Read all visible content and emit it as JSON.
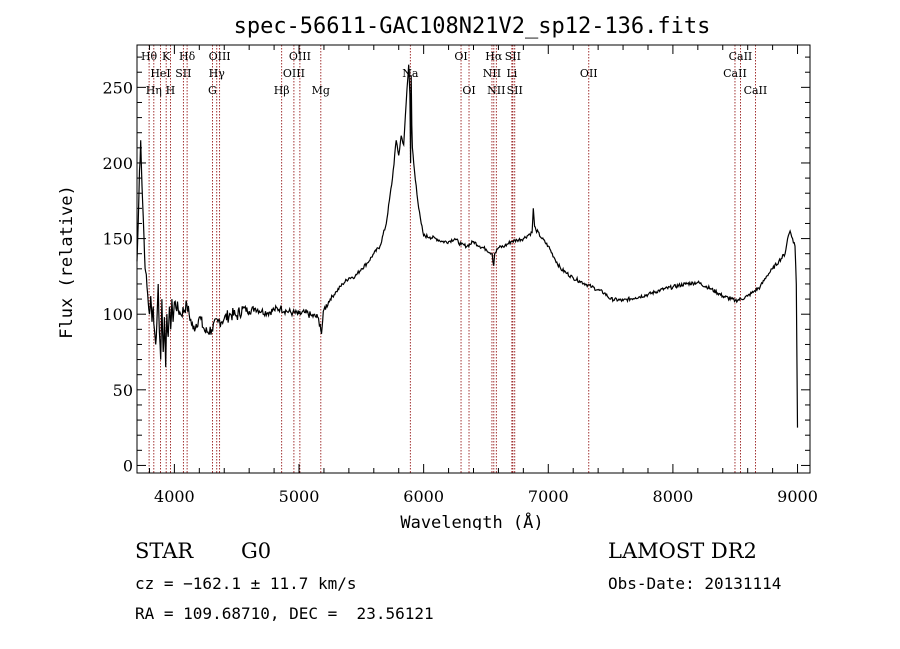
{
  "chart_data": {
    "type": "line",
    "title": "spec-56611-GAC108N21V2_sp12-136.fits",
    "xlabel": "Wavelength (Å)",
    "ylabel": "Flux (relative)",
    "xlim": [
      3700,
      9100
    ],
    "ylim": [
      -5,
      278
    ],
    "xticks": [
      4000,
      5000,
      6000,
      7000,
      8000,
      9000
    ],
    "yticks": [
      0,
      50,
      100,
      150,
      200,
      250
    ],
    "grid": false,
    "series": [
      {
        "x": [
          3700,
          3710,
          3720,
          3730,
          3740,
          3750,
          3760,
          3770,
          3780,
          3790,
          3800,
          3810,
          3820,
          3830,
          3840,
          3850,
          3860,
          3870,
          3880,
          3890,
          3900,
          3910,
          3920,
          3930,
          3940,
          3950,
          3960,
          3970,
          3980,
          3990,
          4000,
          4050,
          4100,
          4150,
          4200,
          4250,
          4300,
          4350,
          4400,
          4450,
          4500,
          4550,
          4600,
          4650,
          4700,
          4750,
          4800,
          4850,
          4900,
          4950,
          5000,
          5050,
          5100,
          5150,
          5170,
          5180,
          5190,
          5200,
          5250,
          5300,
          5350,
          5400,
          5450,
          5500,
          5550,
          5600,
          5650,
          5700,
          5750,
          5780,
          5800,
          5820,
          5840,
          5860,
          5880,
          5890,
          5895,
          5900,
          5905,
          5910,
          5920,
          5940,
          5960,
          5980,
          6000,
          6050,
          6100,
          6150,
          6200,
          6250,
          6300,
          6350,
          6400,
          6450,
          6500,
          6550,
          6562,
          6570,
          6600,
          6650,
          6700,
          6750,
          6800,
          6850,
          6870,
          6880,
          6890,
          6900,
          6950,
          7000,
          7050,
          7100,
          7150,
          7200,
          7250,
          7300,
          7350,
          7400,
          7450,
          7500,
          7600,
          7700,
          7800,
          7900,
          8000,
          8100,
          8200,
          8300,
          8400,
          8500,
          8550,
          8600,
          8650,
          8700,
          8750,
          8800,
          8850,
          8900,
          8920,
          8940,
          8960,
          8980,
          8990,
          9000
        ],
        "y": [
          135,
          160,
          195,
          215,
          185,
          165,
          140,
          128,
          118,
          108,
          100,
          112,
          95,
          105,
          90,
          80,
          95,
          120,
          88,
          70,
          110,
          75,
          98,
          65,
          100,
          85,
          105,
          90,
          110,
          95,
          108,
          100,
          106,
          90,
          98,
          88,
          90,
          95,
          97,
          100,
          99,
          104,
          102,
          104,
          102,
          101,
          103,
          104,
          102,
          101,
          100,
          101,
          99,
          98,
          93,
          87,
          96,
          103,
          110,
          115,
          120,
          124,
          125,
          130,
          134,
          140,
          145,
          160,
          190,
          215,
          205,
          218,
          212,
          240,
          265,
          245,
          200,
          258,
          225,
          210,
          200,
          185,
          170,
          160,
          152,
          151,
          150,
          148,
          148,
          150,
          146,
          145,
          148,
          145,
          143,
          140,
          132,
          140,
          144,
          145,
          148,
          149,
          150,
          153,
          154,
          170,
          158,
          156,
          150,
          145,
          137,
          130,
          127,
          124,
          122,
          120,
          118,
          116,
          114,
          110,
          109,
          111,
          113,
          116,
          118,
          120,
          121,
          117,
          112,
          109,
          110,
          112,
          115,
          118,
          125,
          130,
          135,
          140,
          150,
          155,
          150,
          145,
          120,
          25
        ]
      }
    ],
    "lines": [
      {
        "label": "Hθ",
        "wavelength": 3797,
        "row": 0
      },
      {
        "label": "Hη",
        "wavelength": 3835,
        "row": 2
      },
      {
        "label": "HeI",
        "wavelength": 3889,
        "row": 1
      },
      {
        "label": "K",
        "wavelength": 3934,
        "row": 0
      },
      {
        "label": "H",
        "wavelength": 3968,
        "row": 2
      },
      {
        "label": "SII",
        "wavelength": 4072,
        "row": 1
      },
      {
        "label": "Hδ",
        "wavelength": 4102,
        "row": 0
      },
      {
        "label": "G",
        "wavelength": 4305,
        "row": 2
      },
      {
        "label": "Hγ",
        "wavelength": 4340,
        "row": 1
      },
      {
        "label": "OIII",
        "wavelength": 4363,
        "row": 0
      },
      {
        "label": "Hβ",
        "wavelength": 4861,
        "row": 2
      },
      {
        "label": "OIII",
        "wavelength": 4959,
        "row": 1
      },
      {
        "label": "OIII",
        "wavelength": 5007,
        "row": 0
      },
      {
        "label": "Mg",
        "wavelength": 5175,
        "row": 2
      },
      {
        "label": "Na",
        "wavelength": 5893,
        "row": 1
      },
      {
        "label": "OI",
        "wavelength": 6300,
        "row": 0
      },
      {
        "label": "OI",
        "wavelength": 6364,
        "row": 2
      },
      {
        "label": "NII",
        "wavelength": 6548,
        "row": 1
      },
      {
        "label": "Hα",
        "wavelength": 6563,
        "row": 0
      },
      {
        "label": "NII",
        "wavelength": 6583,
        "row": 2
      },
      {
        "label": "Li",
        "wavelength": 6708,
        "row": 1
      },
      {
        "label": "SII",
        "wavelength": 6716,
        "row": 0
      },
      {
        "label": "SII",
        "wavelength": 6731,
        "row": 2
      },
      {
        "label": "OII",
        "wavelength": 7325,
        "row": 1
      },
      {
        "label": "CaII",
        "wavelength": 8498,
        "row": 1
      },
      {
        "label": "CaII",
        "wavelength": 8542,
        "row": 0
      },
      {
        "label": "CaII",
        "wavelength": 8662,
        "row": 2
      }
    ],
    "colors": {
      "line_marker": "#8b0000",
      "spectrum": "#000000"
    }
  },
  "info": {
    "object_class": "STAR",
    "subclass": "G0",
    "survey": "LAMOST DR2",
    "redshift": "cz = −162.1 ± 11.7 km/s",
    "obs_date": "Obs-Date: 20131114",
    "coords": "RA = 109.68710, DEC =  23.56121"
  }
}
